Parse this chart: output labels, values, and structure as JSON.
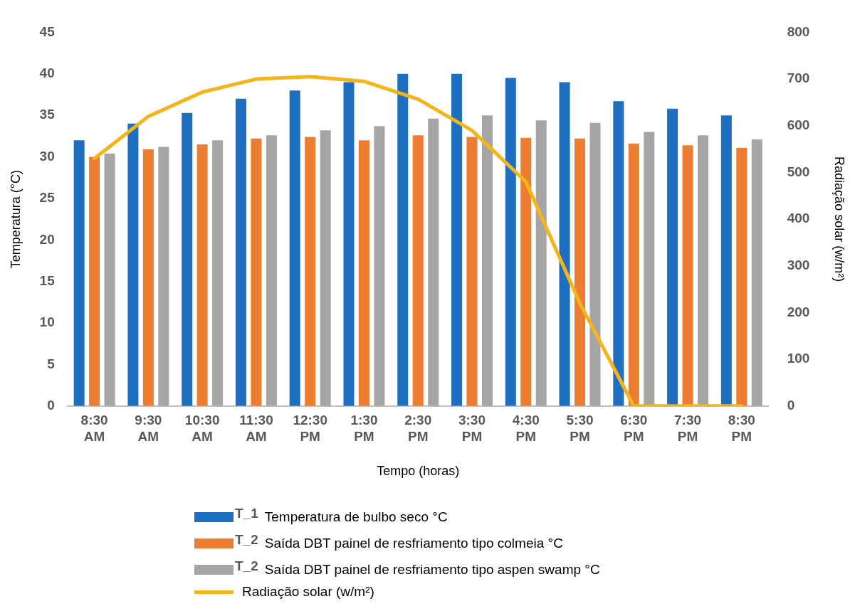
{
  "chart_data": {
    "type": "bar",
    "categories": [
      "8:30 AM",
      "9:30 AM",
      "10:30 AM",
      "11:30 AM",
      "12:30 PM",
      "1:30 PM",
      "2:30 PM",
      "3:30 PM",
      "4:30 PM",
      "5:30 PM",
      "6:30 PM",
      "7:30 PM",
      "8:30 PM"
    ],
    "xlabel": "Tempo (horas)",
    "ylabel": "Temperatura (°C)",
    "y2label": "Radiação solar (w/m²)",
    "ylim": [
      0,
      45
    ],
    "yticks": [
      0,
      5,
      10,
      15,
      20,
      25,
      30,
      35,
      40,
      45
    ],
    "y2lim": [
      0,
      800
    ],
    "y2ticks": [
      0,
      100,
      200,
      300,
      400,
      500,
      600,
      700,
      800
    ],
    "grid": false,
    "legend": "bottom",
    "series": [
      {
        "name": "T_1 Temperatura de bulbo seco °C",
        "color": "#1f6fc0",
        "values": [
          32,
          34,
          35.3,
          37,
          38,
          39,
          40,
          40,
          39.5,
          39,
          36.7,
          35.8,
          35
        ]
      },
      {
        "name": "T_2 Saída DBT painel de resfriamento tipo colmeia °C",
        "color": "#ed7d31",
        "values": [
          30,
          30.9,
          31.5,
          32.2,
          32.4,
          32,
          32.6,
          32.4,
          32.3,
          32.2,
          31.6,
          31.4,
          31.1
        ]
      },
      {
        "name": "T_2 Saída DBT painel de resfriamento tipo aspen swamp °C",
        "color": "#a5a5a5",
        "values": [
          30.4,
          31.2,
          32,
          32.6,
          33.2,
          33.7,
          34.6,
          35,
          34.4,
          34.1,
          33,
          32.6,
          32.1
        ]
      },
      {
        "name": "Radiação solar (w/m²)",
        "type": "line",
        "axis": "y2",
        "color": "#f5b41a",
        "values": [
          530,
          620,
          672,
          700,
          705,
          695,
          657,
          590,
          480,
          220,
          0,
          0,
          0
        ]
      }
    ]
  }
}
